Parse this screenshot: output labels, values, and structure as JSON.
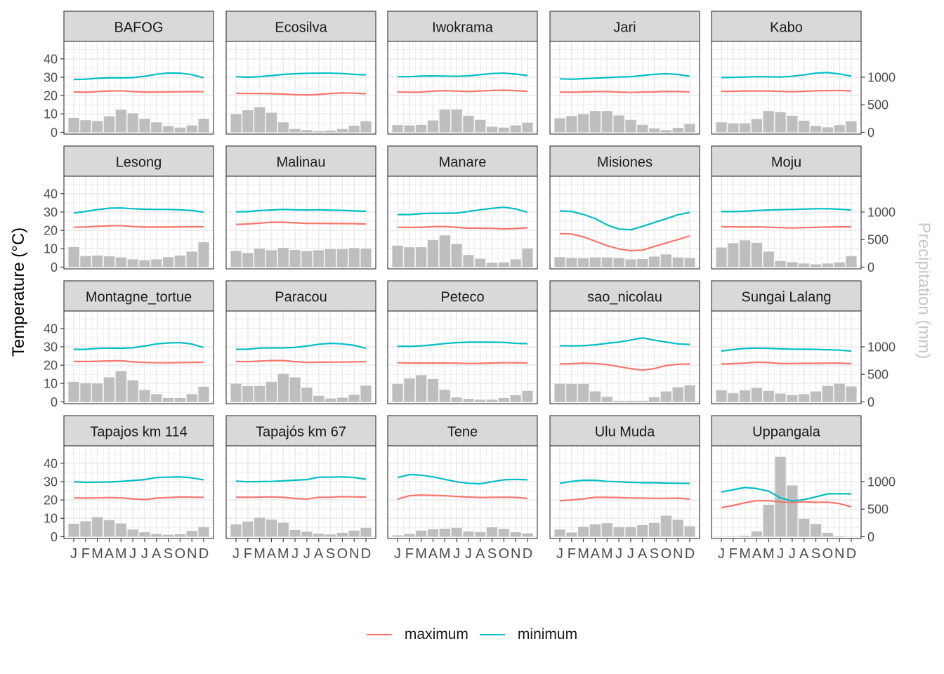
{
  "chart_data": {
    "type": "line",
    "ylabel": "Temperature (°C)",
    "y2label": "Precipitation (mm)",
    "x_tick_labels": [
      "J",
      "F",
      "M",
      "A",
      "M",
      "J",
      "J",
      "A",
      "S",
      "O",
      "N",
      "D"
    ],
    "yticks": [
      0,
      10,
      20,
      30,
      40
    ],
    "y2ticks": [
      0,
      500,
      1000
    ],
    "ylim": [
      -1,
      49.5
    ],
    "precip_per_degree": 33.33,
    "grid": true,
    "legend_position": "bottom",
    "legend": [
      {
        "name": "maximum",
        "color": "#F8766D"
      },
      {
        "name": "minimum",
        "color": "#00BFC4"
      }
    ],
    "bar_color": "#BEBEBE",
    "panels": [
      {
        "name": "BAFOG",
        "maximum": [
          22,
          21.8,
          22.2,
          22.5,
          22.6,
          22.2,
          21.9,
          21.9,
          22,
          22.1,
          22.2,
          22.1
        ],
        "minimum": [
          28.8,
          28.9,
          29.4,
          29.7,
          29.6,
          29.8,
          30.5,
          31.6,
          32.3,
          32.2,
          31.4,
          29.7
        ],
        "precip": [
          260,
          220,
          205,
          290,
          410,
          345,
          245,
          180,
          110,
          85,
          125,
          245
        ]
      },
      {
        "name": "Ecosilva",
        "maximum": [
          21.2,
          21.1,
          21.1,
          21,
          20.8,
          20.5,
          20.3,
          20.6,
          21.1,
          21.4,
          21.3,
          21
        ],
        "minimum": [
          30.3,
          30,
          30.3,
          30.9,
          31.5,
          31.9,
          32.1,
          32.2,
          32.2,
          32,
          31.5,
          31.3
        ],
        "precip": [
          330,
          400,
          455,
          355,
          180,
          60,
          40,
          20,
          30,
          60,
          120,
          200
        ]
      },
      {
        "name": "Iwokrama",
        "maximum": [
          21.9,
          21.8,
          21.9,
          22.4,
          22.7,
          22.4,
          22.2,
          22.5,
          22.8,
          22.9,
          22.7,
          22.3
        ],
        "minimum": [
          30.3,
          30.3,
          30.6,
          30.7,
          30.6,
          30.5,
          30.7,
          31.4,
          32,
          32.2,
          31.7,
          30.9
        ],
        "precip": [
          130,
          125,
          135,
          215,
          415,
          415,
          300,
          225,
          100,
          85,
          125,
          175
        ]
      },
      {
        "name": "Jari",
        "maximum": [
          21.9,
          21.8,
          22,
          22.2,
          22.2,
          21.9,
          21.7,
          21.9,
          22,
          22.3,
          22.2,
          22
        ],
        "minimum": [
          29.1,
          28.9,
          29.2,
          29.5,
          29.8,
          30.1,
          30.3,
          30.9,
          31.6,
          31.9,
          31.5,
          30.5
        ],
        "precip": [
          255,
          295,
          330,
          385,
          385,
          305,
          225,
          135,
          70,
          40,
          80,
          150
        ]
      },
      {
        "name": "Kabo",
        "maximum": [
          22.3,
          22.3,
          22.5,
          22.5,
          22.5,
          22.3,
          22.1,
          22.3,
          22.6,
          22.7,
          22.8,
          22.5
        ],
        "minimum": [
          29.8,
          29.9,
          30.1,
          30.3,
          30.2,
          30.1,
          30.5,
          31.3,
          32.2,
          32.5,
          31.8,
          30.6
        ],
        "precip": [
          180,
          160,
          160,
          240,
          385,
          365,
          300,
          210,
          115,
          90,
          130,
          200
        ]
      },
      {
        "name": "Lesong",
        "maximum": [
          21.7,
          21.8,
          22.2,
          22.5,
          22.6,
          22.1,
          21.8,
          21.8,
          21.8,
          21.9,
          22,
          21.9
        ],
        "minimum": [
          29.4,
          30.3,
          31.3,
          32.1,
          32.2,
          31.8,
          31.5,
          31.4,
          31.4,
          31.2,
          30.8,
          29.9
        ],
        "precip": [
          365,
          200,
          210,
          195,
          175,
          140,
          125,
          140,
          180,
          210,
          280,
          450
        ]
      },
      {
        "name": "Malinau",
        "maximum": [
          23.2,
          23.5,
          23.9,
          24.4,
          24.4,
          24.1,
          23.8,
          23.8,
          23.7,
          23.7,
          23.6,
          23.5
        ],
        "minimum": [
          30.1,
          30.2,
          30.8,
          31.1,
          31.4,
          31.2,
          31.1,
          31.2,
          31,
          30.9,
          30.6,
          30.4
        ],
        "precip": [
          295,
          255,
          335,
          305,
          350,
          310,
          290,
          305,
          325,
          325,
          345,
          335
        ]
      },
      {
        "name": "Manare",
        "maximum": [
          21.7,
          21.6,
          21.6,
          22,
          22.1,
          21.6,
          21.2,
          21.2,
          21.1,
          20.8,
          21,
          21.4
        ],
        "minimum": [
          28.6,
          28.6,
          29.1,
          29.3,
          29.3,
          29.4,
          30.3,
          31.2,
          32,
          32.6,
          31.7,
          29.8
        ],
        "precip": [
          390,
          360,
          360,
          490,
          575,
          420,
          220,
          150,
          80,
          85,
          140,
          340
        ]
      },
      {
        "name": "Misiones",
        "maximum": [
          18.2,
          18,
          16.5,
          14.1,
          11.7,
          9.9,
          8.9,
          9.2,
          11.2,
          13.1,
          15,
          17
        ],
        "minimum": [
          30.6,
          30.3,
          28.7,
          26.4,
          23,
          20.7,
          20.3,
          22.2,
          24.3,
          26.3,
          28.5,
          29.8
        ],
        "precip": [
          180,
          165,
          160,
          175,
          175,
          165,
          140,
          145,
          190,
          230,
          175,
          165
        ]
      },
      {
        "name": "Moju",
        "maximum": [
          22,
          21.9,
          21.8,
          21.9,
          21.7,
          21.5,
          21.3,
          21.5,
          21.6,
          21.8,
          21.9,
          21.9
        ],
        "minimum": [
          30.2,
          30.2,
          30.4,
          30.8,
          31.1,
          31.3,
          31.4,
          31.6,
          31.8,
          31.8,
          31.5,
          31.1
        ],
        "precip": [
          355,
          435,
          485,
          440,
          280,
          110,
          90,
          65,
          50,
          65,
          85,
          200
        ]
      },
      {
        "name": "Montagne_tortue",
        "maximum": [
          22,
          22,
          22.1,
          22.3,
          22.4,
          21.8,
          21.5,
          21.3,
          21.3,
          21.4,
          21.5,
          21.6
        ],
        "minimum": [
          28.6,
          28.6,
          29.2,
          29.3,
          29.2,
          29.5,
          30.4,
          31.6,
          32.1,
          32.3,
          31.5,
          29.6
        ],
        "precip": [
          365,
          340,
          335,
          445,
          560,
          390,
          215,
          140,
          70,
          70,
          140,
          275
        ]
      },
      {
        "name": "Paracou",
        "maximum": [
          22,
          21.9,
          22.2,
          22.5,
          22.5,
          21.9,
          21.5,
          21.6,
          21.7,
          21.7,
          21.8,
          21.9
        ],
        "minimum": [
          28.6,
          28.7,
          29.3,
          29.4,
          29.4,
          29.7,
          30.4,
          31.4,
          31.9,
          31.6,
          30.8,
          29.2
        ],
        "precip": [
          330,
          285,
          290,
          365,
          510,
          445,
          260,
          110,
          60,
          75,
          130,
          295
        ]
      },
      {
        "name": "Peteco",
        "maximum": [
          21.3,
          21.2,
          21.2,
          21.2,
          21.2,
          21.1,
          20.9,
          21,
          21.2,
          21.3,
          21.3,
          21.2
        ],
        "minimum": [
          30.3,
          30.2,
          30.5,
          31.1,
          31.8,
          32.3,
          32.5,
          32.5,
          32.5,
          32.4,
          31.9,
          31.7
        ],
        "precip": [
          325,
          425,
          485,
          415,
          220,
          80,
          55,
          40,
          40,
          70,
          120,
          200
        ]
      },
      {
        "name": "sao_nicolau",
        "maximum": [
          20.7,
          20.8,
          21.1,
          20.9,
          20.3,
          19.2,
          18.1,
          17.3,
          18.1,
          19.8,
          20.5,
          20.6
        ],
        "minimum": [
          30.6,
          30.5,
          30.6,
          31.1,
          31.9,
          32.6,
          33.7,
          34.9,
          33.6,
          32.6,
          31.6,
          31.3
        ],
        "precip": [
          330,
          325,
          325,
          190,
          90,
          20,
          20,
          20,
          85,
          190,
          265,
          300
        ]
      },
      {
        "name": "Sungai Lalang",
        "maximum": [
          20.6,
          20.8,
          21.1,
          21.6,
          21.4,
          20.9,
          20.9,
          21,
          21,
          21.1,
          21.1,
          20.8
        ],
        "minimum": [
          27.7,
          28.5,
          29.1,
          29.3,
          29.2,
          28.9,
          28.7,
          28.7,
          28.6,
          28.4,
          28.2,
          27.7
        ],
        "precip": [
          210,
          155,
          210,
          255,
          200,
          150,
          125,
          140,
          190,
          290,
          330,
          280
        ]
      },
      {
        "name": "Tapajos km 114",
        "maximum": [
          21.1,
          21,
          21.1,
          21.3,
          21.1,
          20.6,
          20.2,
          21,
          21.3,
          21.6,
          21.5,
          21.4
        ],
        "minimum": [
          29.9,
          29.6,
          29.7,
          29.8,
          30.1,
          30.6,
          31.1,
          32.2,
          32.4,
          32.6,
          32,
          31
        ],
        "precip": [
          235,
          280,
          355,
          300,
          240,
          130,
          80,
          50,
          35,
          45,
          105,
          175
        ]
      },
      {
        "name": "Tapajós km 67",
        "maximum": [
          21.5,
          21.4,
          21.5,
          21.7,
          21.4,
          20.8,
          20.5,
          21.4,
          21.5,
          21.8,
          21.7,
          21.6
        ],
        "minimum": [
          30.2,
          29.9,
          30,
          30.1,
          30.4,
          30.8,
          31.1,
          32.4,
          32.4,
          32.6,
          32.2,
          31.3
        ],
        "precip": [
          225,
          275,
          345,
          310,
          255,
          120,
          90,
          55,
          40,
          70,
          110,
          160
        ]
      },
      {
        "name": "Tene",
        "maximum": [
          20.4,
          22.3,
          22.7,
          22.5,
          22.3,
          21.9,
          21.6,
          21.3,
          21.4,
          21.5,
          21.4,
          20.8
        ],
        "minimum": [
          32.2,
          33.8,
          33.5,
          32.6,
          31.2,
          29.9,
          29.1,
          28.8,
          29.9,
          31,
          31.2,
          31
        ],
        "precip": [
          25,
          50,
          110,
          135,
          145,
          160,
          95,
          85,
          170,
          140,
          80,
          60
        ]
      },
      {
        "name": "Ulu Muda",
        "maximum": [
          19.5,
          20,
          20.6,
          21.4,
          21.4,
          21.3,
          21.1,
          21,
          20.9,
          20.9,
          21,
          20.5
        ],
        "minimum": [
          29.1,
          30.1,
          30.7,
          30.7,
          30.1,
          29.9,
          29.6,
          29.4,
          29.4,
          29.2,
          29.1,
          29
        ],
        "precip": [
          130,
          75,
          180,
          225,
          245,
          175,
          175,
          210,
          250,
          380,
          305,
          190
        ]
      },
      {
        "name": "Uppangala",
        "maximum": [
          15.8,
          17,
          18.5,
          19.6,
          19.6,
          19,
          18.6,
          19,
          18.7,
          18.8,
          18,
          16.3
        ],
        "minimum": [
          24.3,
          25.6,
          26.8,
          26.2,
          24.8,
          21.1,
          19.4,
          20.2,
          21.7,
          23.3,
          23.4,
          23.3
        ],
        "precip": [
          0,
          5,
          15,
          95,
          580,
          1450,
          930,
          325,
          230,
          70,
          10,
          0
        ]
      }
    ]
  }
}
